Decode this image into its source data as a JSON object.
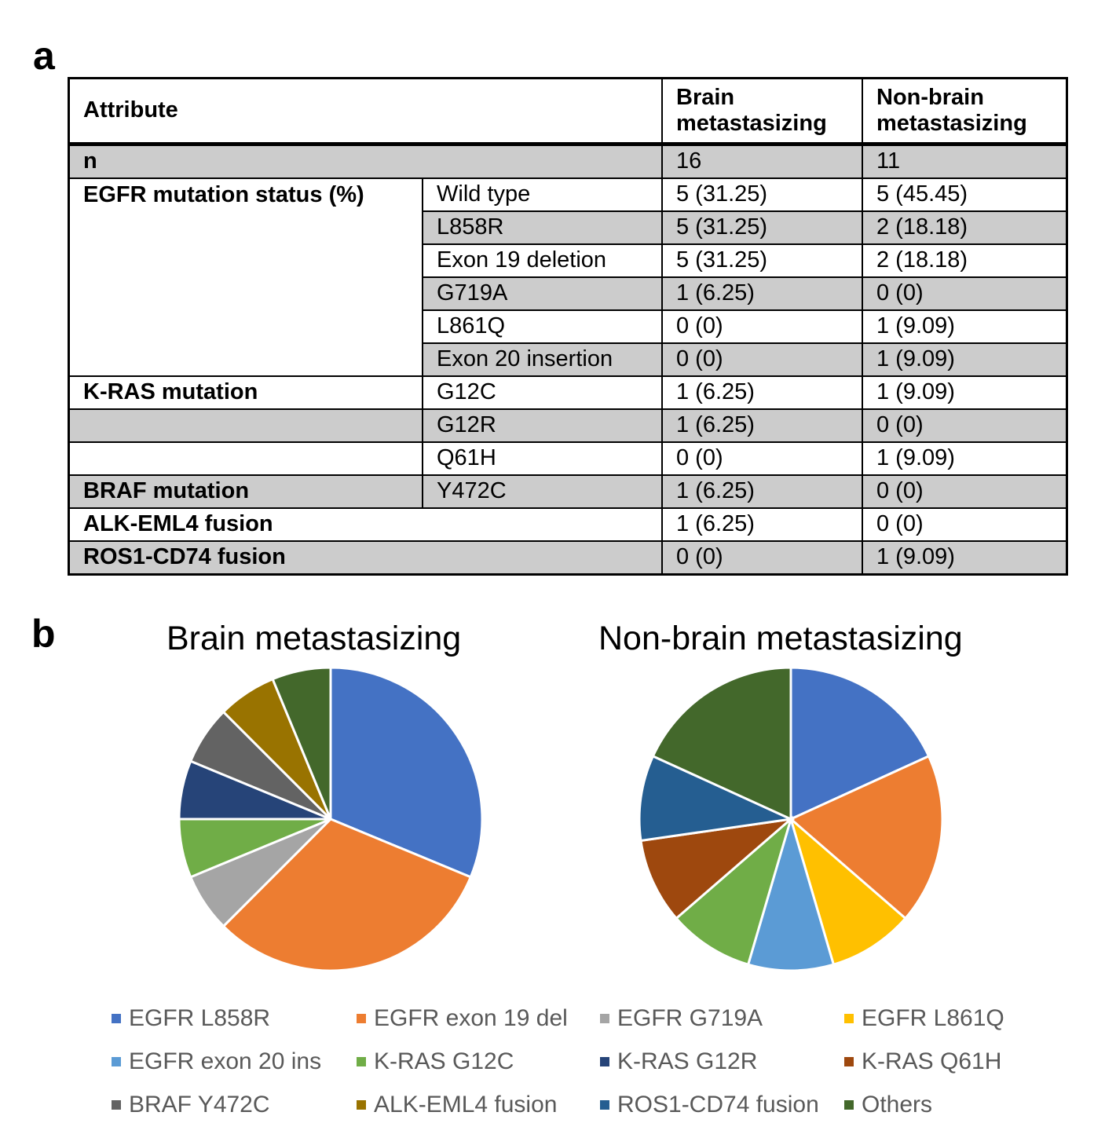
{
  "panel_labels": {
    "a": "a",
    "b": "b"
  },
  "table": {
    "headers": [
      "Attribute",
      "Brain metastasizing",
      "Non-brain metastasizing"
    ],
    "rows": [
      {
        "group": "n",
        "sub": "",
        "brain": "16",
        "nonbrain": "11",
        "gray": true,
        "span": true
      },
      {
        "group": "EGFR mutation status (%)",
        "sub": "Wild type",
        "brain": "5 (31.25)",
        "nonbrain": "5 (45.45)",
        "gray": false
      },
      {
        "group": "",
        "sub": "L858R",
        "brain": "5 (31.25)",
        "nonbrain": "2 (18.18)",
        "gray": true
      },
      {
        "group": "",
        "sub": "Exon 19 deletion",
        "brain": "5 (31.25)",
        "nonbrain": "2 (18.18)",
        "gray": false
      },
      {
        "group": "",
        "sub": "G719A",
        "brain": "1 (6.25)",
        "nonbrain": "0 (0)",
        "gray": true
      },
      {
        "group": "",
        "sub": "L861Q",
        "brain": "0 (0)",
        "nonbrain": "1 (9.09)",
        "gray": false
      },
      {
        "group": "",
        "sub": "Exon 20 insertion",
        "brain": "0 (0)",
        "nonbrain": "1 (9.09)",
        "gray": true
      },
      {
        "group": "K-RAS mutation",
        "sub": "G12C",
        "brain": "1 (6.25)",
        "nonbrain": "1 (9.09)",
        "gray": false
      },
      {
        "group": "",
        "sub": "G12R",
        "brain": "1 (6.25)",
        "nonbrain": "0 (0)",
        "gray": true
      },
      {
        "group": "",
        "sub": "Q61H",
        "brain": "0 (0)",
        "nonbrain": "1 (9.09)",
        "gray": false
      },
      {
        "group": "BRAF mutation",
        "sub": "Y472C",
        "brain": "1 (6.25)",
        "nonbrain": "0 (0)",
        "gray": true
      },
      {
        "group": "ALK-EML4 fusion",
        "sub": "",
        "brain": "1 (6.25)",
        "nonbrain": "0 (0)",
        "gray": false,
        "span": true
      },
      {
        "group": "ROS1-CD74 fusion",
        "sub": "",
        "brain": "0 (0)",
        "nonbrain": "1 (9.09)",
        "gray": true,
        "span": true
      }
    ]
  },
  "chart_data": [
    {
      "type": "pie",
      "title": "Brain metastasizing",
      "labels": [
        "EGFR L858R",
        "EGFR exon 19 del",
        "EGFR G719A",
        "K-RAS G12C",
        "K-RAS G12R",
        "BRAF Y472C",
        "ALK-EML4 fusion",
        "Others"
      ],
      "values": [
        5,
        5,
        1,
        1,
        1,
        1,
        1,
        1
      ],
      "colors": [
        "#4472C4",
        "#ED7D31",
        "#A5A5A5",
        "#70AD47",
        "#264478",
        "#636363",
        "#997300",
        "#43682B"
      ]
    },
    {
      "type": "pie",
      "title": "Non-brain metastasizing",
      "labels": [
        "EGFR L858R",
        "EGFR exon 19 del",
        "EGFR L861Q",
        "EGFR exon 20 ins",
        "K-RAS G12C",
        "K-RAS Q61H",
        "ROS1-CD74 fusion",
        "Others"
      ],
      "values": [
        2,
        2,
        1,
        1,
        1,
        1,
        1,
        2
      ],
      "colors": [
        "#4472C4",
        "#ED7D31",
        "#FFC000",
        "#5B9BD5",
        "#70AD47",
        "#9E480E",
        "#255E91",
        "#43682B"
      ]
    }
  ],
  "legend": [
    {
      "label": "EGFR L858R",
      "color": "#4472C4"
    },
    {
      "label": "EGFR exon 19 del",
      "color": "#ED7D31"
    },
    {
      "label": "EGFR G719A",
      "color": "#A5A5A5"
    },
    {
      "label": "EGFR L861Q",
      "color": "#FFC000"
    },
    {
      "label": "EGFR exon 20 ins",
      "color": "#5B9BD5"
    },
    {
      "label": "K-RAS G12C",
      "color": "#70AD47"
    },
    {
      "label": "K-RAS G12R",
      "color": "#264478"
    },
    {
      "label": "K-RAS Q61H",
      "color": "#9E480E"
    },
    {
      "label": "BRAF Y472C",
      "color": "#636363"
    },
    {
      "label": "ALK-EML4 fusion",
      "color": "#997300"
    },
    {
      "label": "ROS1-CD74 fusion",
      "color": "#255E91"
    },
    {
      "label": "Others",
      "color": "#43682B"
    }
  ]
}
